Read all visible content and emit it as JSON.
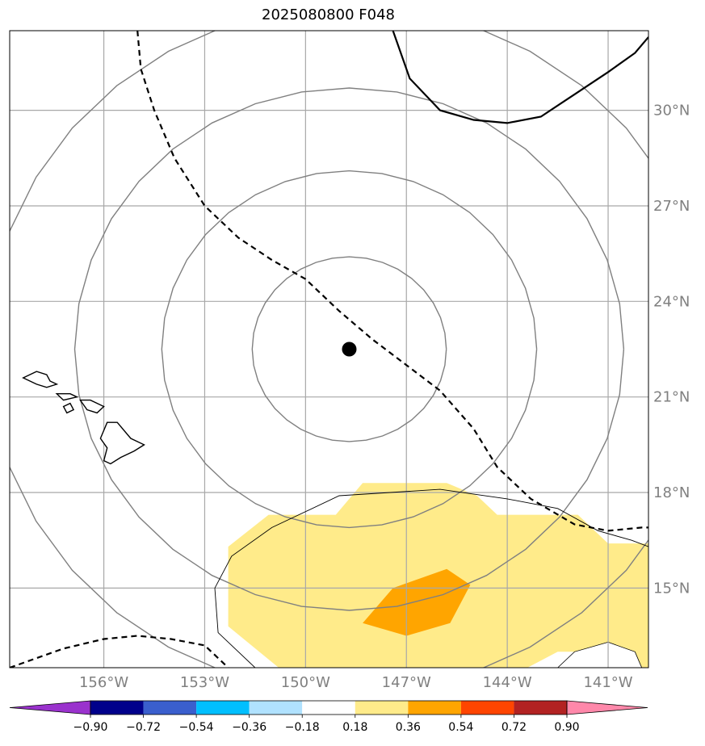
{
  "chart_data": {
    "type": "map-contour",
    "title": "2025080800 F048",
    "lon_range": [
      -158.8,
      -139.8
    ],
    "lat_range": [
      12.5,
      32.5
    ],
    "lon_ticks": [
      {
        "value": -156,
        "label": "156°W"
      },
      {
        "value": -153,
        "label": "153°W"
      },
      {
        "value": -150,
        "label": "150°W"
      },
      {
        "value": -147,
        "label": "147°W"
      },
      {
        "value": -144,
        "label": "144°W"
      },
      {
        "value": -141,
        "label": "141°W"
      }
    ],
    "lat_ticks": [
      {
        "value": 30,
        "label": "30°N"
      },
      {
        "value": 27,
        "label": "27°N"
      },
      {
        "value": 24,
        "label": "24°N"
      },
      {
        "value": 21,
        "label": "21°N"
      },
      {
        "value": 18,
        "label": "18°N"
      },
      {
        "value": 15,
        "label": "15°N"
      }
    ],
    "grid": true,
    "storm_center": {
      "lon": -148.7,
      "lat": 22.5
    },
    "range_rings_deg": [
      2.9,
      5.6,
      8.2,
      10.8
    ],
    "colorbar": {
      "orientation": "horizontal",
      "extend": "both",
      "ticks": [
        "−0.90",
        "−0.72",
        "−0.54",
        "−0.36",
        "−0.18",
        "0.18",
        "0.36",
        "0.54",
        "0.72",
        "0.90"
      ],
      "colors": [
        "#9a32cd",
        "#00008b",
        "#3a5fcd",
        "#00bfff",
        "#b0e2ff",
        "#ffffff",
        "#ffeb8a",
        "#ffa500",
        "#ff4500",
        "#b22222",
        "#ff88aa"
      ]
    },
    "filled_regions": [
      {
        "level": "0.18–0.36",
        "color": "#ffeb8a",
        "polygon": [
          [
            -152.3,
            16.3
          ],
          [
            -151.1,
            17.3
          ],
          [
            -149.1,
            17.3
          ],
          [
            -148.3,
            18.3
          ],
          [
            -145.8,
            18.3
          ],
          [
            -144.9,
            17.9
          ],
          [
            -144.3,
            17.3
          ],
          [
            -141.9,
            17.3
          ],
          [
            -141.0,
            16.4
          ],
          [
            -139.8,
            16.4
          ],
          [
            -139.8,
            12.5
          ],
          [
            -140.5,
            12.5
          ],
          [
            -141.0,
            13.0
          ],
          [
            -142.5,
            13.0
          ],
          [
            -143.4,
            12.5
          ],
          [
            -148.3,
            12.5
          ],
          [
            -150.8,
            12.5
          ],
          [
            -152.3,
            13.8
          ]
        ]
      },
      {
        "level": "0.36–0.54",
        "color": "#ffa500",
        "polygon": [
          [
            -147.4,
            15.0
          ],
          [
            -145.8,
            15.6
          ],
          [
            -145.1,
            15.1
          ],
          [
            -145.7,
            13.9
          ],
          [
            -147.0,
            13.5
          ],
          [
            -148.3,
            13.9
          ]
        ]
      }
    ],
    "track_lines": [
      {
        "style": "dashed",
        "points": [
          [
            -155.0,
            32.5
          ],
          [
            -154.9,
            31.3
          ],
          [
            -154.5,
            30.0
          ],
          [
            -153.9,
            28.5
          ],
          [
            -153.0,
            27.0
          ],
          [
            -152.0,
            26.0
          ],
          [
            -151.0,
            25.3
          ],
          [
            -150.0,
            24.7
          ],
          [
            -149.0,
            23.7
          ],
          [
            -148.0,
            22.8
          ],
          [
            -147.0,
            22.0
          ],
          [
            -146.0,
            21.2
          ],
          [
            -145.0,
            20.0
          ],
          [
            -144.3,
            18.8
          ],
          [
            -143.3,
            17.8
          ],
          [
            -142.0,
            17.0
          ],
          [
            -141.0,
            16.8
          ],
          [
            -140.0,
            16.9
          ],
          [
            -139.8,
            16.9
          ]
        ]
      },
      {
        "style": "dashed",
        "points": [
          [
            -158.8,
            12.5
          ],
          [
            -157.2,
            13.1
          ],
          [
            -156.0,
            13.4
          ],
          [
            -155.0,
            13.5
          ],
          [
            -154.0,
            13.4
          ],
          [
            -153.0,
            13.2
          ],
          [
            -152.3,
            12.5
          ]
        ]
      },
      {
        "style": "solid",
        "points": [
          [
            -147.4,
            32.5
          ],
          [
            -146.9,
            31.0
          ],
          [
            -146.0,
            30.0
          ],
          [
            -145.0,
            29.7
          ],
          [
            -144.0,
            29.6
          ],
          [
            -143.0,
            29.8
          ],
          [
            -142.0,
            30.5
          ],
          [
            -141.0,
            31.2
          ],
          [
            -140.2,
            31.8
          ],
          [
            -139.8,
            32.3
          ]
        ]
      }
    ],
    "outline_contour": {
      "points": [
        [
          -152.7,
          15.0
        ],
        [
          -152.2,
          16.0
        ],
        [
          -151.0,
          16.9
        ],
        [
          -149.0,
          17.9
        ],
        [
          -146.0,
          18.1
        ],
        [
          -144.0,
          17.8
        ],
        [
          -142.5,
          17.5
        ],
        [
          -141.3,
          16.8
        ],
        [
          -140.3,
          16.5
        ],
        [
          -139.8,
          16.3
        ]
      ]
    },
    "outline_contour_2": {
      "points": [
        [
          -152.7,
          15.0
        ],
        [
          -152.6,
          13.6
        ],
        [
          -151.5,
          12.5
        ]
      ]
    },
    "white_patch": {
      "points": [
        [
          -142.5,
          12.5
        ],
        [
          -142.0,
          13.0
        ],
        [
          -141.0,
          13.3
        ],
        [
          -140.2,
          13.0
        ],
        [
          -140.0,
          12.5
        ]
      ]
    },
    "coastlines": [
      {
        "name": "kauai",
        "points": [
          [
            -158.4,
            21.6
          ],
          [
            -158.0,
            21.8
          ],
          [
            -157.7,
            21.7
          ],
          [
            -157.6,
            21.5
          ],
          [
            -157.4,
            21.4
          ],
          [
            -157.7,
            21.3
          ],
          [
            -158.0,
            21.4
          ]
        ]
      },
      {
        "name": "oahu",
        "points": [
          [
            -157.4,
            21.1
          ],
          [
            -157.0,
            21.1
          ],
          [
            -156.8,
            21.0
          ],
          [
            -157.2,
            20.9
          ]
        ]
      },
      {
        "name": "molokai",
        "points": [
          [
            -157.2,
            20.7
          ],
          [
            -157.0,
            20.8
          ],
          [
            -156.9,
            20.6
          ],
          [
            -157.1,
            20.5
          ]
        ]
      },
      {
        "name": "maui",
        "points": [
          [
            -156.7,
            20.9
          ],
          [
            -156.4,
            20.9
          ],
          [
            -156.0,
            20.7
          ],
          [
            -156.2,
            20.5
          ],
          [
            -156.5,
            20.6
          ]
        ]
      },
      {
        "name": "hawaii",
        "points": [
          [
            -155.9,
            20.2
          ],
          [
            -155.6,
            20.2
          ],
          [
            -155.2,
            19.7
          ],
          [
            -154.8,
            19.5
          ],
          [
            -155.1,
            19.3
          ],
          [
            -155.5,
            19.1
          ],
          [
            -155.8,
            18.9
          ],
          [
            -156.0,
            19.0
          ],
          [
            -155.9,
            19.4
          ],
          [
            -156.1,
            19.7
          ]
        ]
      }
    ]
  }
}
